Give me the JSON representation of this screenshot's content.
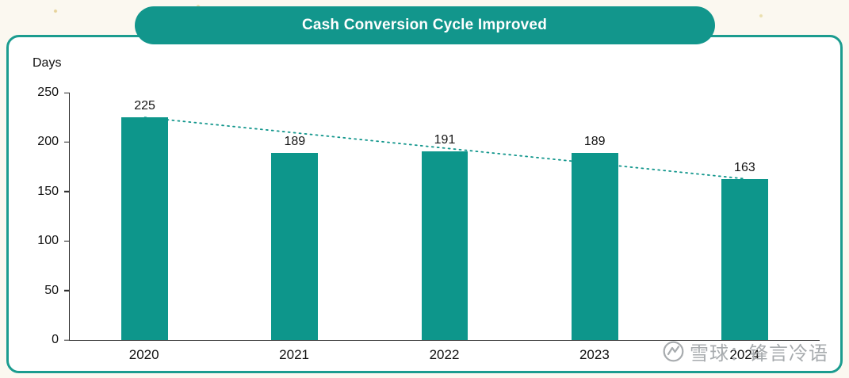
{
  "watermark": {
    "icon": "xueqiu-logo",
    "text": "雪球：锋言冷语"
  },
  "chart_data": {
    "type": "bar",
    "title": "Cash Conversion Cycle Improved",
    "categories": [
      "2020",
      "2021",
      "2022",
      "2023",
      "2024"
    ],
    "values": [
      225,
      189,
      191,
      189,
      163
    ],
    "xlabel": "",
    "ylabel": "Days",
    "ylim": [
      0,
      250
    ],
    "yticks": [
      0,
      50,
      100,
      150,
      200,
      250
    ],
    "grid": false,
    "legend": "none",
    "bar_color": "#0d968b",
    "bar_width_pct": 6.2,
    "trend_line": {
      "style": "dotted",
      "color": "#12968c",
      "from_index": 0,
      "to_index": 4
    },
    "accent_color": "#12968c"
  }
}
